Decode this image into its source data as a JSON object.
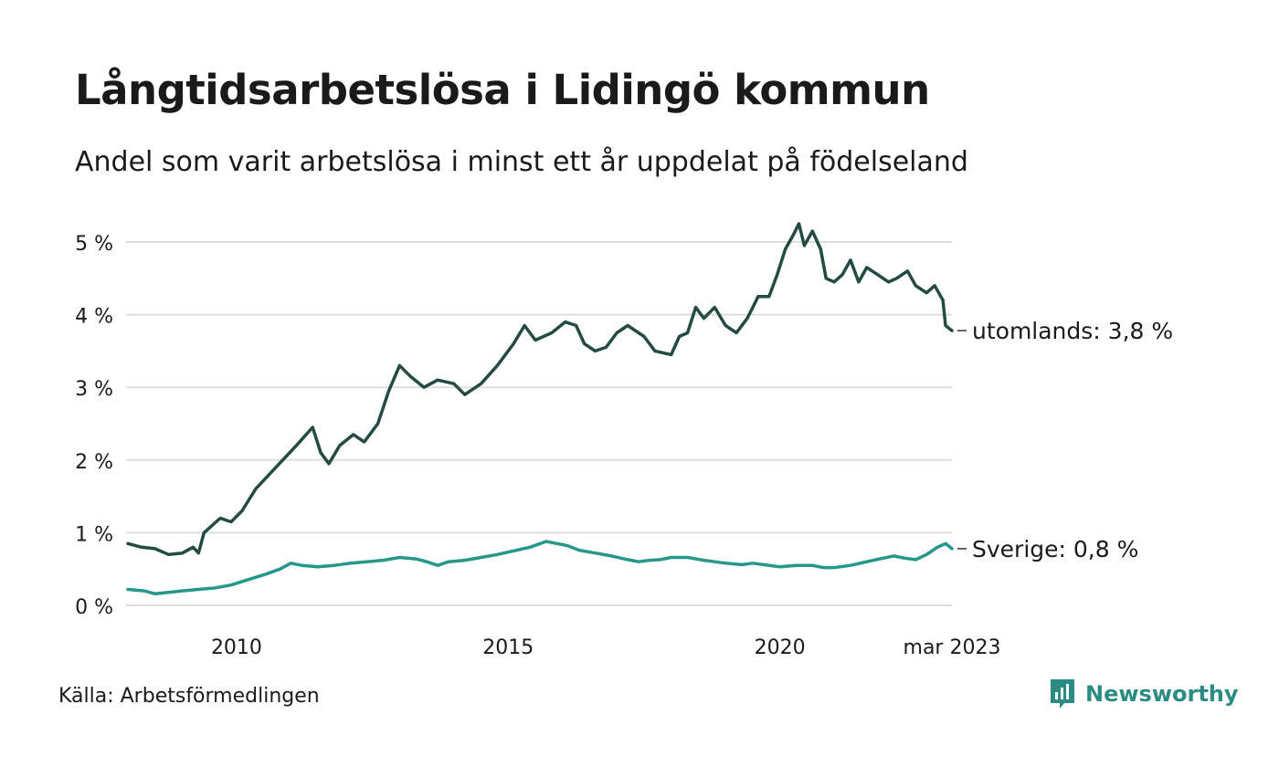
{
  "title": "Långtidsarbetslösa i Lidingö kommun",
  "subtitle": "Andel som varit arbetslösa i minst ett år uppdelat på födelseland",
  "source": "Källa: Arbetsförmedlingen",
  "brand": "Newsworthy",
  "colors": {
    "utomlands": "#234b43",
    "sverige": "#25978b",
    "grid": "#dddddd",
    "brand": "#2b8c84"
  },
  "chart_data": {
    "type": "line",
    "x_ticks": [
      {
        "year": 2010,
        "label": "2010"
      },
      {
        "year": 2015,
        "label": "2015"
      },
      {
        "year": 2020,
        "label": "2020"
      },
      {
        "year": 2023.167,
        "label": "mar 2023"
      }
    ],
    "y_ticks": [
      {
        "value": 0,
        "label": "0 %"
      },
      {
        "value": 1,
        "label": "1 %"
      },
      {
        "value": 2,
        "label": "2 %"
      },
      {
        "value": 3,
        "label": "3 %"
      },
      {
        "value": 4,
        "label": "4 %"
      },
      {
        "value": 5,
        "label": "5 %"
      }
    ],
    "ylim": [
      0,
      5
    ],
    "xlim": [
      2008.0,
      2023.167
    ],
    "grid": true,
    "series": [
      {
        "key": "utomlands",
        "end_label": "utomlands: 3,8 %",
        "points": [
          [
            2008.0,
            0.85
          ],
          [
            2008.25,
            0.8
          ],
          [
            2008.5,
            0.78
          ],
          [
            2008.75,
            0.7
          ],
          [
            2009.0,
            0.72
          ],
          [
            2009.2,
            0.8
          ],
          [
            2009.3,
            0.72
          ],
          [
            2009.4,
            1.0
          ],
          [
            2009.7,
            1.2
          ],
          [
            2009.9,
            1.15
          ],
          [
            2010.1,
            1.3
          ],
          [
            2010.35,
            1.6
          ],
          [
            2010.6,
            1.8
          ],
          [
            2010.85,
            2.0
          ],
          [
            2011.1,
            2.2
          ],
          [
            2011.4,
            2.45
          ],
          [
            2011.55,
            2.1
          ],
          [
            2011.7,
            1.95
          ],
          [
            2011.9,
            2.2
          ],
          [
            2012.15,
            2.35
          ],
          [
            2012.35,
            2.25
          ],
          [
            2012.6,
            2.5
          ],
          [
            2012.8,
            2.95
          ],
          [
            2013.0,
            3.3
          ],
          [
            2013.2,
            3.15
          ],
          [
            2013.45,
            3.0
          ],
          [
            2013.7,
            3.1
          ],
          [
            2014.0,
            3.05
          ],
          [
            2014.2,
            2.9
          ],
          [
            2014.5,
            3.05
          ],
          [
            2014.8,
            3.3
          ],
          [
            2015.1,
            3.6
          ],
          [
            2015.3,
            3.85
          ],
          [
            2015.5,
            3.65
          ],
          [
            2015.8,
            3.75
          ],
          [
            2016.05,
            3.9
          ],
          [
            2016.25,
            3.85
          ],
          [
            2016.4,
            3.6
          ],
          [
            2016.6,
            3.5
          ],
          [
            2016.8,
            3.55
          ],
          [
            2017.0,
            3.75
          ],
          [
            2017.2,
            3.85
          ],
          [
            2017.5,
            3.7
          ],
          [
            2017.7,
            3.5
          ],
          [
            2018.0,
            3.45
          ],
          [
            2018.15,
            3.7
          ],
          [
            2018.3,
            3.75
          ],
          [
            2018.45,
            4.1
          ],
          [
            2018.6,
            3.95
          ],
          [
            2018.8,
            4.1
          ],
          [
            2019.0,
            3.85
          ],
          [
            2019.2,
            3.75
          ],
          [
            2019.4,
            3.95
          ],
          [
            2019.6,
            4.25
          ],
          [
            2019.8,
            4.25
          ],
          [
            2019.95,
            4.55
          ],
          [
            2020.1,
            4.9
          ],
          [
            2020.25,
            5.1
          ],
          [
            2020.35,
            5.25
          ],
          [
            2020.45,
            4.95
          ],
          [
            2020.6,
            5.15
          ],
          [
            2020.75,
            4.9
          ],
          [
            2020.85,
            4.5
          ],
          [
            2021.0,
            4.45
          ],
          [
            2021.15,
            4.55
          ],
          [
            2021.3,
            4.75
          ],
          [
            2021.45,
            4.45
          ],
          [
            2021.6,
            4.65
          ],
          [
            2021.8,
            4.55
          ],
          [
            2022.0,
            4.45
          ],
          [
            2022.15,
            4.5
          ],
          [
            2022.35,
            4.6
          ],
          [
            2022.5,
            4.4
          ],
          [
            2022.7,
            4.3
          ],
          [
            2022.85,
            4.4
          ],
          [
            2023.0,
            4.2
          ],
          [
            2023.05,
            3.85
          ],
          [
            2023.167,
            3.78
          ]
        ]
      },
      {
        "key": "sverige",
        "end_label": "Sverige: 0,8 %",
        "points": [
          [
            2008.0,
            0.22
          ],
          [
            2008.3,
            0.2
          ],
          [
            2008.5,
            0.16
          ],
          [
            2008.75,
            0.18
          ],
          [
            2009.0,
            0.2
          ],
          [
            2009.3,
            0.22
          ],
          [
            2009.6,
            0.24
          ],
          [
            2009.9,
            0.28
          ],
          [
            2010.2,
            0.35
          ],
          [
            2010.5,
            0.42
          ],
          [
            2010.8,
            0.5
          ],
          [
            2011.0,
            0.58
          ],
          [
            2011.2,
            0.55
          ],
          [
            2011.5,
            0.53
          ],
          [
            2011.8,
            0.55
          ],
          [
            2012.1,
            0.58
          ],
          [
            2012.4,
            0.6
          ],
          [
            2012.7,
            0.62
          ],
          [
            2013.0,
            0.66
          ],
          [
            2013.3,
            0.64
          ],
          [
            2013.5,
            0.6
          ],
          [
            2013.7,
            0.55
          ],
          [
            2013.9,
            0.6
          ],
          [
            2014.2,
            0.62
          ],
          [
            2014.5,
            0.66
          ],
          [
            2014.8,
            0.7
          ],
          [
            2015.1,
            0.75
          ],
          [
            2015.4,
            0.8
          ],
          [
            2015.7,
            0.88
          ],
          [
            2015.9,
            0.85
          ],
          [
            2016.1,
            0.82
          ],
          [
            2016.3,
            0.76
          ],
          [
            2016.6,
            0.72
          ],
          [
            2016.9,
            0.68
          ],
          [
            2017.2,
            0.63
          ],
          [
            2017.4,
            0.6
          ],
          [
            2017.6,
            0.62
          ],
          [
            2017.8,
            0.63
          ],
          [
            2018.0,
            0.66
          ],
          [
            2018.3,
            0.66
          ],
          [
            2018.6,
            0.62
          ],
          [
            2018.8,
            0.6
          ],
          [
            2019.0,
            0.58
          ],
          [
            2019.3,
            0.56
          ],
          [
            2019.5,
            0.58
          ],
          [
            2019.7,
            0.56
          ],
          [
            2020.0,
            0.53
          ],
          [
            2020.3,
            0.55
          ],
          [
            2020.6,
            0.55
          ],
          [
            2020.8,
            0.52
          ],
          [
            2021.0,
            0.52
          ],
          [
            2021.3,
            0.55
          ],
          [
            2021.6,
            0.6
          ],
          [
            2021.9,
            0.65
          ],
          [
            2022.1,
            0.68
          ],
          [
            2022.3,
            0.65
          ],
          [
            2022.5,
            0.63
          ],
          [
            2022.7,
            0.7
          ],
          [
            2022.9,
            0.8
          ],
          [
            2023.05,
            0.85
          ],
          [
            2023.167,
            0.78
          ]
        ]
      }
    ]
  }
}
